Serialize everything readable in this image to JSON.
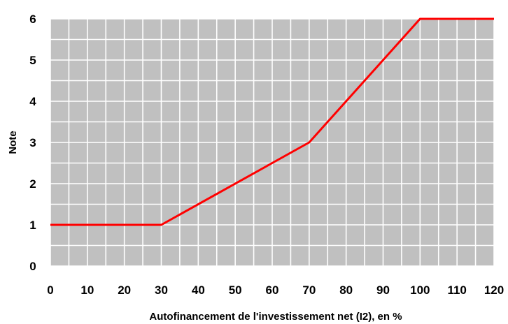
{
  "chart_data": {
    "type": "line",
    "title": "",
    "xlabel": "Autofinancement de l'investissement net (I2), en %",
    "ylabel": "Note",
    "xlim": [
      0,
      120
    ],
    "ylim": [
      0,
      6
    ],
    "x_ticks": [
      "0",
      "10",
      "20",
      "30",
      "40",
      "50",
      "60",
      "70",
      "80",
      "90",
      "100",
      "110",
      "120"
    ],
    "y_ticks": [
      "0",
      "1",
      "2",
      "3",
      "4",
      "5",
      "6"
    ],
    "grid": true,
    "legend": "none",
    "series": [
      {
        "x": [
          0,
          30,
          70,
          100,
          120
        ],
        "y": [
          1,
          1,
          3,
          6,
          6
        ]
      }
    ],
    "colors": {
      "plot_background": "#c0c0c0",
      "grid": "#ffffff",
      "line": "#ff0000"
    }
  }
}
